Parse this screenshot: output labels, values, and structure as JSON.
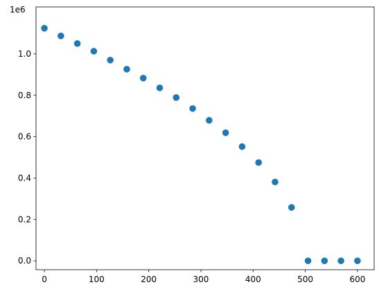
{
  "chart_data": {
    "type": "scatter",
    "y_offset_label": "1e6",
    "color": "#1f77b4",
    "x": [
      0,
      31.58,
      63.16,
      94.74,
      126.32,
      157.89,
      189.47,
      221.05,
      252.63,
      284.21,
      315.79,
      347.37,
      378.95,
      410.53,
      442.11,
      473.68,
      505.26,
      536.84,
      568.42,
      600
    ],
    "values": [
      1124000,
      1087000,
      1050000,
      1013000,
      970000,
      926000,
      883000,
      836000,
      789000,
      736000,
      679000,
      619000,
      552000,
      475000,
      381000,
      258000,
      0,
      0,
      0,
      0
    ],
    "xlim": [
      -16,
      632
    ],
    "ylim": [
      -43000,
      1227000
    ],
    "xticks": [
      0,
      100,
      200,
      300,
      400,
      500,
      600
    ],
    "yticks": [
      {
        "value": 0,
        "label": "0.0"
      },
      {
        "value": 200000,
        "label": "0.2"
      },
      {
        "value": 400000,
        "label": "0.4"
      },
      {
        "value": 600000,
        "label": "0.6"
      },
      {
        "value": 800000,
        "label": "0.8"
      },
      {
        "value": 1000000,
        "label": "1.0"
      }
    ],
    "grid": false
  }
}
